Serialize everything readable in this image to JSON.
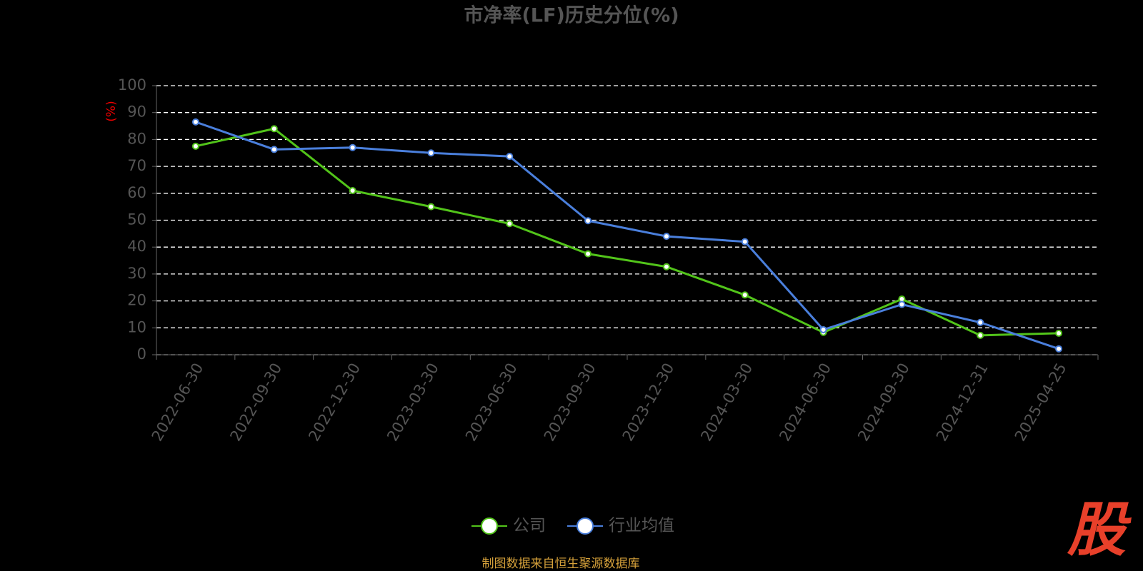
{
  "chart_data": {
    "type": "line",
    "title": "市净率(LF)历史分位(%)",
    "y_label": "(%)",
    "categories": [
      "2022-06-30",
      "2022-09-30",
      "2022-12-30",
      "2023-03-30",
      "2023-06-30",
      "2023-09-30",
      "2023-12-30",
      "2024-03-30",
      "2024-06-30",
      "2024-09-30",
      "2024-12-31",
      "2025-04-25"
    ],
    "series": [
      {
        "name": "公司",
        "color": "#52c41a",
        "values": [
          77.5,
          84,
          61,
          55,
          48.7,
          37.5,
          32.7,
          22.2,
          8.3,
          20.7,
          7.2,
          8.0
        ]
      },
      {
        "name": "行业均值",
        "color": "#4a7fdc",
        "values": [
          86.5,
          76.3,
          77,
          75,
          73.7,
          49.8,
          44,
          42,
          9.3,
          18.7,
          12,
          2.2
        ]
      }
    ],
    "ylim": [
      0,
      100
    ],
    "yticks": [
      0,
      10,
      20,
      30,
      40,
      50,
      60,
      70,
      80,
      90,
      100
    ],
    "grid": true,
    "source": "制图数据来自恒生聚源数据库",
    "logo": "股"
  }
}
